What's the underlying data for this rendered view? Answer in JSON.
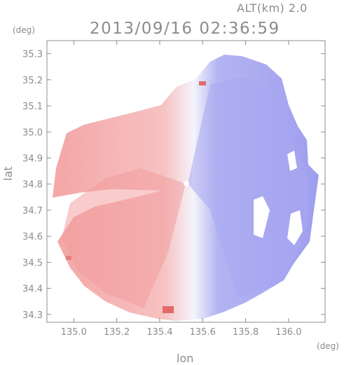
{
  "header": {
    "altitude_label": "ALT(km) 2.0",
    "timestamp": "2013/09/16 02:36:59"
  },
  "axes": {
    "x_label": "lon",
    "y_label": "lat",
    "x_unit": "(deg)",
    "y_unit": "(deg)",
    "x_ticks": [
      "135.0",
      "135.2",
      "135.4",
      "135.6",
      "135.8",
      "136.0"
    ],
    "y_ticks": [
      "34.3",
      "34.4",
      "34.5",
      "34.6",
      "34.7",
      "34.8",
      "34.9",
      "35.0",
      "35.1",
      "35.2",
      "35.3"
    ]
  },
  "map": {
    "extent": {
      "lon": [
        134.875,
        136.17
      ],
      "lat": [
        34.27,
        35.35
      ]
    },
    "radar_center": {
      "lon": 135.52,
      "lat": 34.815
    },
    "colors": {
      "toward_radar": "#8c8cf0",
      "away_from_radar": "#f29a9a",
      "near_zero": "#f3f3fb",
      "frame": "#8c8c8c"
    }
  }
}
